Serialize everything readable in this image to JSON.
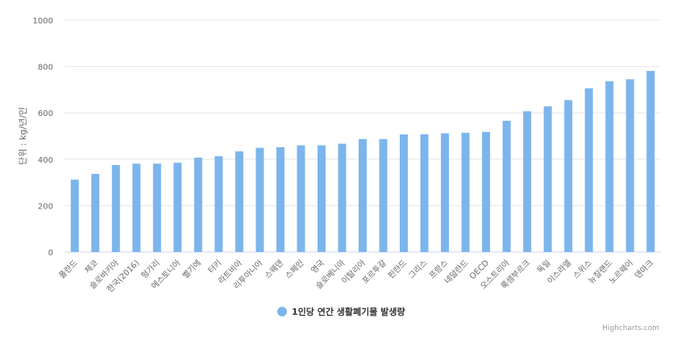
{
  "chart_data": {
    "type": "bar",
    "title": "",
    "xlabel": "",
    "ylabel": "단위 : kg/년/인",
    "ylim": [
      0,
      1000
    ],
    "yticks": [
      0,
      200,
      400,
      600,
      800,
      1000
    ],
    "grid": true,
    "legend_position": "bottom-center",
    "categories": [
      "폴란드",
      "체코",
      "슬로바키아",
      "한국(2016)",
      "헝가리",
      "에스토니아",
      "벨기에",
      "터키",
      "라트비아",
      "리투아니아",
      "스웨덴",
      "스페인",
      "영국",
      "슬로베니아",
      "이탈리아",
      "포르투갈",
      "핀란드",
      "그리스",
      "프랑스",
      "네덜란드",
      "OECD",
      "오스트리아",
      "룩셈부르크",
      "독일",
      "이스라엘",
      "스위스",
      "뉴질랜드",
      "노르웨이",
      "덴마크"
    ],
    "series": [
      {
        "name": "1인당 연간 생활폐기물 발생량",
        "color": "#7cb5ec",
        "values": [
          312,
          337,
          375,
          381,
          381,
          385,
          407,
          413,
          434,
          449,
          452,
          460,
          460,
          467,
          487,
          487,
          507,
          508,
          512,
          514,
          518,
          566,
          607,
          628,
          655,
          706,
          736,
          745,
          781
        ]
      }
    ]
  },
  "credits": "Highcharts.com"
}
